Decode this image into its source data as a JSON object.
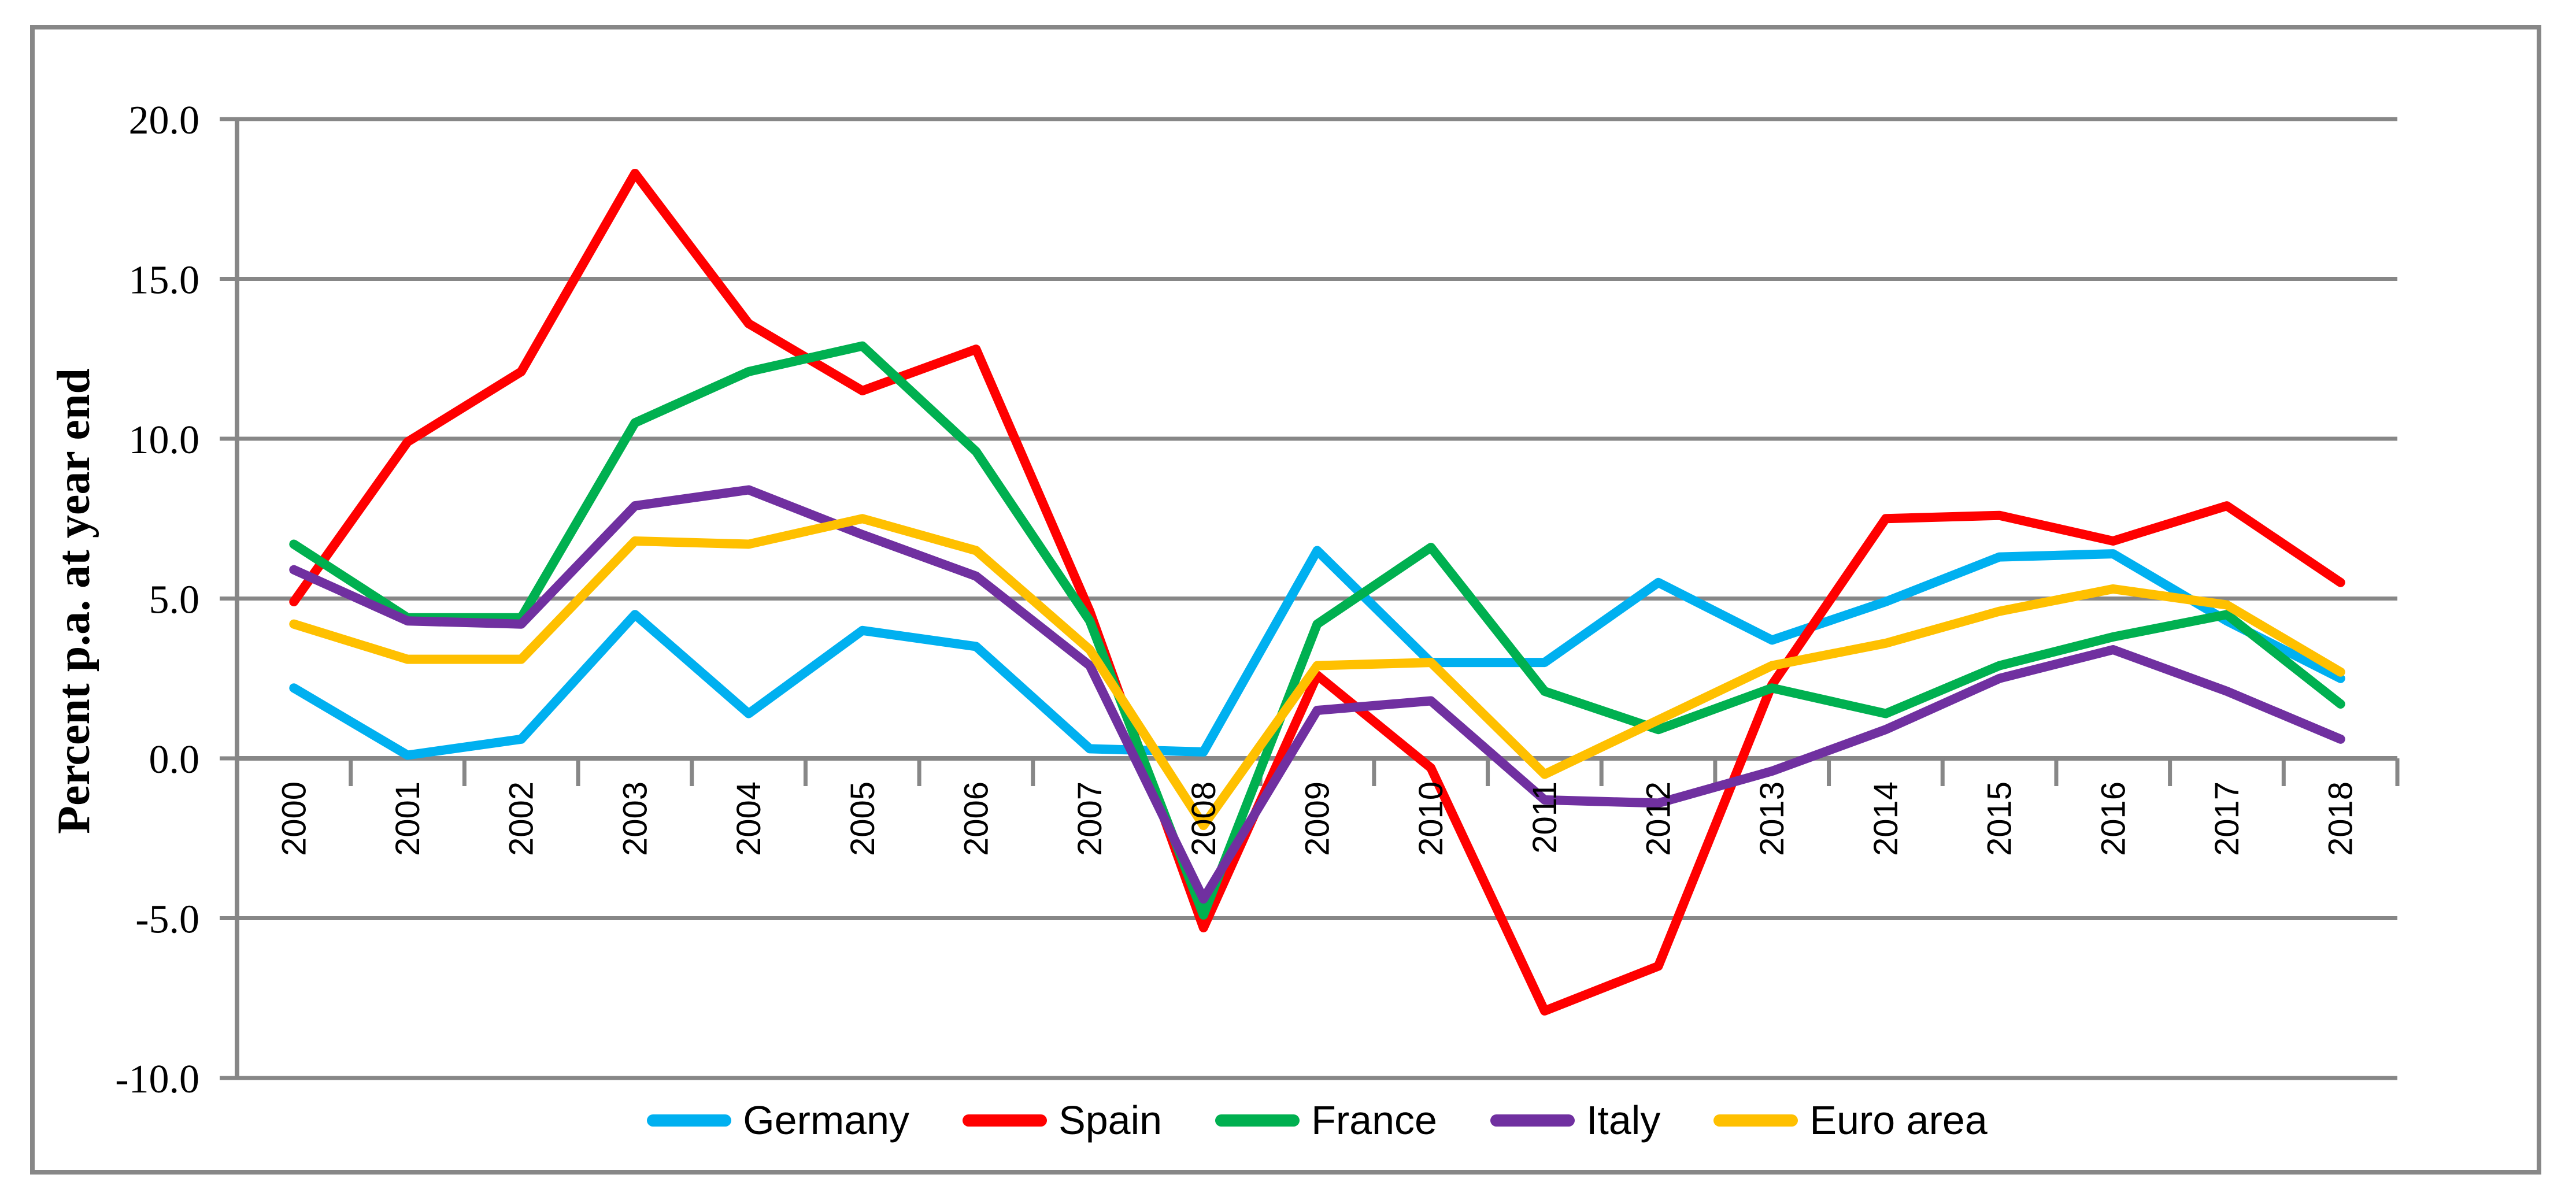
{
  "chart_data": {
    "type": "line",
    "title": "",
    "ylabel": "Percent p.a. at year end",
    "xlabel": "",
    "x": [
      2000,
      2001,
      2002,
      2003,
      2004,
      2005,
      2006,
      2007,
      2008,
      2009,
      2010,
      2011,
      2012,
      2013,
      2014,
      2015,
      2016,
      2017,
      2018
    ],
    "series": [
      {
        "name": "Germany",
        "color": "#00B0F0",
        "values": [
          2.2,
          0.1,
          0.6,
          4.5,
          1.4,
          4.0,
          3.5,
          0.3,
          0.2,
          6.5,
          3.0,
          3.0,
          5.5,
          3.7,
          4.9,
          6.3,
          6.4,
          4.3,
          2.5
        ]
      },
      {
        "name": "Spain",
        "color": "#FF0000",
        "values": [
          4.9,
          9.9,
          12.1,
          18.3,
          13.6,
          11.5,
          12.8,
          4.6,
          -5.3,
          2.6,
          -0.3,
          -7.9,
          -6.5,
          2.3,
          7.5,
          7.6,
          6.8,
          7.9,
          5.5
        ]
      },
      {
        "name": "France",
        "color": "#00B050",
        "values": [
          6.7,
          4.4,
          4.4,
          10.5,
          12.1,
          12.9,
          9.6,
          4.3,
          -4.9,
          4.2,
          6.6,
          2.1,
          0.9,
          2.2,
          1.4,
          2.9,
          3.8,
          4.5,
          1.7
        ]
      },
      {
        "name": "Italy",
        "color": "#7030A0",
        "values": [
          5.9,
          4.3,
          4.2,
          7.9,
          8.4,
          7.0,
          5.7,
          2.9,
          -4.4,
          1.5,
          1.8,
          -1.3,
          -1.4,
          -0.4,
          0.9,
          2.5,
          3.4,
          2.1,
          0.6
        ]
      },
      {
        "name": "Euro area",
        "color": "#FFC000",
        "values": [
          4.2,
          3.1,
          3.1,
          6.8,
          6.7,
          7.5,
          6.5,
          3.4,
          -2.1,
          2.9,
          3.0,
          -0.5,
          1.2,
          2.9,
          3.6,
          4.6,
          5.3,
          4.8,
          2.7
        ]
      }
    ],
    "ylim": [
      -10,
      20
    ],
    "y_tick_step": 5,
    "y_tick_labels": [
      "20.0",
      "15.0",
      "10.0",
      "5.0",
      "0.0",
      "-5.0",
      "-10.0"
    ],
    "x_tick_labels": [
      "2000",
      "2001",
      "2002",
      "2003",
      "2004",
      "2005",
      "2006",
      "2007",
      "2008",
      "2009",
      "2010",
      "2011",
      "2012",
      "2013",
      "2014",
      "2015",
      "2016",
      "2017",
      "2018"
    ],
    "grid": true,
    "legend_position": "bottom",
    "axis_color": "#878787"
  }
}
